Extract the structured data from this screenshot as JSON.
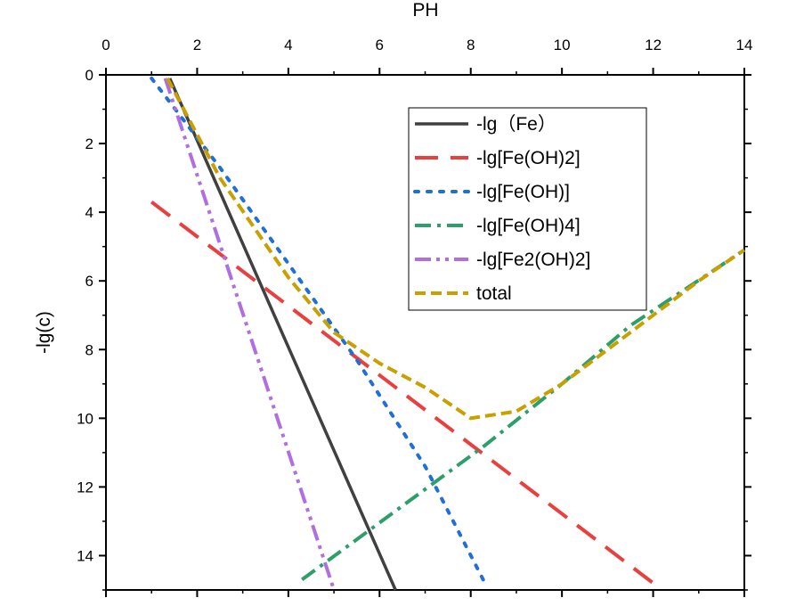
{
  "chart_data": {
    "type": "line",
    "title": "",
    "xlabel": "PH",
    "ylabel": "-lg(c)",
    "xlim": [
      0,
      14
    ],
    "ylim": [
      0,
      15
    ],
    "y_inverted": true,
    "x_axis_position": "top",
    "xticks": [
      "0",
      "2",
      "4",
      "6",
      "8",
      "10",
      "12",
      "14"
    ],
    "yticks": [
      "0",
      "2",
      "4",
      "6",
      "8",
      "10",
      "12",
      "14"
    ],
    "grid": false,
    "legend_position": "top-right",
    "series": [
      {
        "name": "-lg（Fe）",
        "color": "#404040",
        "dash": "solid",
        "x": [
          1.4,
          6.35
        ],
        "y": [
          0.1,
          15.0
        ]
      },
      {
        "name": "-lg[Fe(OH)2]",
        "color": "#e8403f",
        "dash": "dash",
        "x": [
          1.0,
          12.0
        ],
        "y": [
          3.7,
          14.8
        ]
      },
      {
        "name": "-lg[Fe(OH)]",
        "color": "#1f6fd6",
        "dash": "dot",
        "x": [
          1.0,
          2.5,
          4.0,
          5.5,
          7.0,
          8.35
        ],
        "y": [
          0.1,
          2.7,
          5.5,
          8.3,
          11.4,
          14.9
        ]
      },
      {
        "name": "-lg[Fe(OH)4]",
        "color": "#2e9e6a",
        "dash": "dashdot",
        "x": [
          4.3,
          8.3,
          10.0,
          11.5,
          14.0
        ],
        "y": [
          14.7,
          10.8,
          9.0,
          7.3,
          5.1
        ]
      },
      {
        "name": "-lg[Fe2(OH)2]",
        "color": "#b06fe0",
        "dash": "dashdotdot",
        "x": [
          1.3,
          5.0
        ],
        "y": [
          0.1,
          15.0
        ]
      },
      {
        "name": "total",
        "color": "#c9a000",
        "dash": "shortdash",
        "x": [
          1.35,
          2.5,
          4.0,
          5.0,
          6.0,
          7.0,
          8.0,
          9.0,
          10.0,
          11.0,
          12.0,
          13.0,
          14.0
        ],
        "y": [
          0.1,
          3.0,
          5.9,
          7.5,
          8.4,
          9.1,
          10.0,
          9.8,
          9.0,
          8.0,
          7.0,
          6.0,
          5.1
        ]
      }
    ]
  }
}
